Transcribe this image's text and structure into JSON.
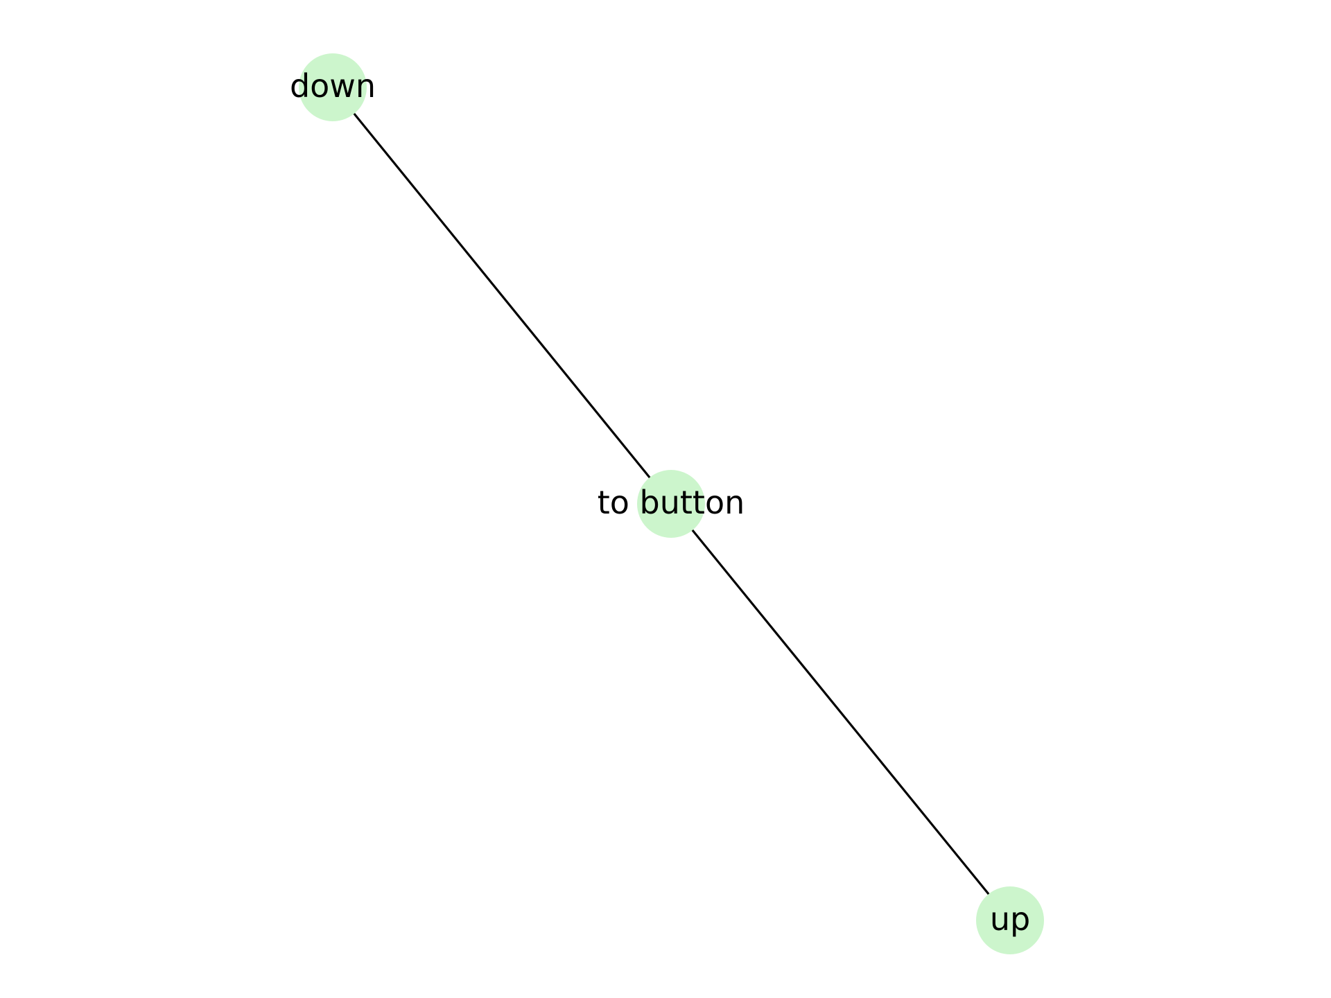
{
  "diagram": {
    "type": "graph",
    "directed": false,
    "node_color": "#ccf5cc",
    "edge_color": "#000000",
    "label_color": "#000000",
    "nodes": [
      {
        "id": "down",
        "label": "down"
      },
      {
        "id": "to button",
        "label": "to button"
      },
      {
        "id": "up",
        "label": "up"
      }
    ],
    "edges": [
      {
        "source": "down",
        "target": "to button"
      },
      {
        "source": "to button",
        "target": "up"
      }
    ]
  }
}
